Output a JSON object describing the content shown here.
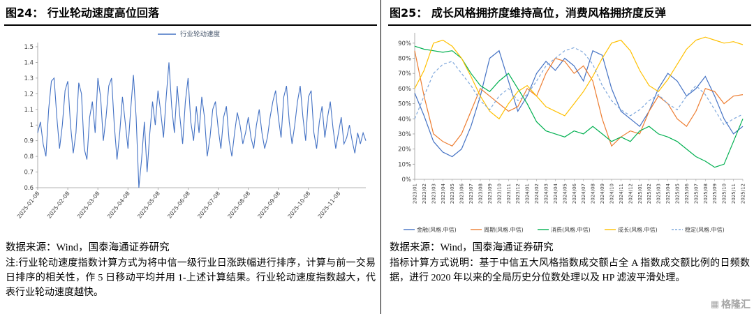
{
  "left": {
    "title": "图24：  行业轮动速度高位回落",
    "source": "数据来源：Wind，国泰海通证券研究",
    "note": "注:行业轮动速度指数计算方式为将中信一级行业日涨跌幅进行排序，计算与前一交易日排序的相关性，作 5 日移动平均并用 1-上述计算结果。行业轮动速度指数越大，代表行业轮动速度越快。"
  },
  "right": {
    "title": "图25：  成长风格拥挤度维持高位，消费风格拥挤度反弹",
    "source": "数据来源：Wind，国泰海通证券研究",
    "note": "指标计算方式说明：基于中信五大风格指数成交额占全 A 指数成交额比例的日频数据，进行 2020 年以来的全局历史分位数处理以及 HP 滤波平滑处理。"
  },
  "watermark": "格隆汇",
  "chart_data": [
    {
      "type": "line",
      "title": "图24: 行业轮动速度高位回落",
      "legend": [
        "行业轮动速度"
      ],
      "color": "#4472C4",
      "ylim": [
        0.6,
        1.5
      ],
      "yticks": [
        0.6,
        0.7,
        0.8,
        0.9,
        1,
        1.1,
        1.2,
        1.3,
        1.4,
        1.5
      ],
      "ytick_labels": [
        "0.6",
        "0.7",
        "0.8",
        "0.9",
        "1",
        "1.1",
        "1.2",
        "1.3",
        "1.4",
        "1.5"
      ],
      "xtick_labels": [
        "2025-01-08",
        "2025-02-08",
        "2025-03-08",
        "2025-04-08",
        "2025-05-08",
        "2025-06-08",
        "2025-07-08",
        "2025-08-08",
        "2025-09-08",
        "2025-10-08",
        "2025-11-08"
      ],
      "xtick_step": 11,
      "values": [
        0.95,
        1.02,
        0.88,
        0.8,
        1.1,
        1.28,
        1.3,
        1.05,
        0.85,
        1.0,
        1.22,
        1.28,
        1.0,
        0.82,
        0.95,
        1.27,
        1.2,
        0.85,
        0.78,
        1.05,
        1.15,
        0.95,
        1.3,
        1.18,
        0.9,
        1.05,
        1.25,
        1.3,
        1.0,
        0.78,
        0.95,
        1.18,
        1.02,
        0.85,
        1.1,
        1.32,
        1.05,
        0.6,
        0.78,
        1.02,
        0.7,
        0.95,
        1.15,
        1.0,
        1.22,
        1.08,
        0.92,
        1.18,
        1.4,
        1.12,
        0.95,
        1.25,
        1.05,
        0.88,
        1.15,
        1.3,
        1.02,
        0.9,
        1.12,
        0.95,
        1.18,
        1.05,
        0.8,
        0.92,
        1.1,
        1.15,
        0.98,
        0.85,
        1.05,
        1.12,
        0.9,
        0.8,
        0.95,
        1.08,
        1.0,
        0.88,
        0.95,
        1.05,
        0.92,
        0.85,
        1.0,
        1.1,
        0.95,
        0.85,
        0.92,
        1.05,
        1.15,
        1.22,
        1.05,
        0.92,
        1.18,
        1.25,
        1.02,
        0.88,
        1.0,
        1.15,
        1.25,
        1.05,
        0.9,
        1.18,
        1.22,
        0.95,
        0.85,
        1.02,
        1.12,
        0.92,
        1.05,
        1.15,
        0.98,
        0.85,
        0.95,
        1.05,
        0.88,
        0.92,
        1.0,
        0.9,
        0.82,
        0.95,
        0.88,
        0.95,
        0.9
      ]
    },
    {
      "type": "line",
      "title": "图25: 成长风格拥挤度维持高位，消费风格拥挤度反弹",
      "ylim": [
        0,
        95
      ],
      "yticks": [
        0,
        10,
        20,
        30,
        40,
        50,
        60,
        70,
        80,
        90
      ],
      "ytick_labels": [
        "0%",
        "10%",
        "20%",
        "30%",
        "40%",
        "50%",
        "60%",
        "70%",
        "80%",
        "90%"
      ],
      "categories": [
        "2023/01",
        "2023/02",
        "2023/03",
        "2023/04",
        "2023/05",
        "2023/06",
        "2023/07",
        "2023/08",
        "2023/09",
        "2023/10",
        "2023/11",
        "2023/12",
        "2024/01",
        "2024/02",
        "2024/03",
        "2024/04",
        "2024/05",
        "2024/06",
        "2024/07",
        "2024/08",
        "2024/09",
        "2024/10",
        "2024/11",
        "2024/12",
        "2025/01",
        "2025/02",
        "2025/03",
        "2025/04",
        "2025/05",
        "2025/06",
        "2025/07",
        "2025/08",
        "2025/09",
        "2025/10",
        "2025/11",
        "2025/12"
      ],
      "series": [
        {
          "name": "金融(风格.中信)",
          "color": "#4472C4",
          "dash": "",
          "values": [
            57,
            42,
            25,
            18,
            15,
            20,
            35,
            55,
            80,
            85,
            65,
            45,
            55,
            70,
            78,
            72,
            80,
            75,
            65,
            85,
            82,
            60,
            45,
            40,
            35,
            45,
            60,
            70,
            65,
            55,
            60,
            68,
            55,
            40,
            30,
            35
          ]
        },
        {
          "name": "周期(风格.中信)",
          "color": "#ED7D31",
          "dash": "",
          "values": [
            85,
            55,
            30,
            25,
            22,
            30,
            45,
            60,
            55,
            50,
            45,
            48,
            60,
            55,
            70,
            80,
            78,
            70,
            75,
            65,
            40,
            22,
            28,
            32,
            30,
            45,
            55,
            50,
            40,
            35,
            45,
            60,
            58,
            50,
            55,
            56
          ]
        },
        {
          "name": "消费(风格.中信)",
          "color": "#00B050",
          "dash": "",
          "values": [
            88,
            86,
            85,
            84,
            85,
            80,
            70,
            62,
            58,
            65,
            70,
            60,
            50,
            38,
            32,
            30,
            28,
            32,
            30,
            35,
            30,
            25,
            28,
            25,
            32,
            35,
            30,
            28,
            25,
            20,
            15,
            12,
            8,
            10,
            25,
            40
          ]
        },
        {
          "name": "成长(风格.中信)",
          "color": "#FFC000",
          "dash": "",
          "values": [
            60,
            72,
            90,
            92,
            88,
            80,
            68,
            55,
            45,
            40,
            50,
            58,
            62,
            55,
            48,
            45,
            42,
            50,
            58,
            68,
            80,
            90,
            92,
            85,
            72,
            62,
            58,
            66,
            76,
            86,
            92,
            94,
            92,
            90,
            91,
            89
          ]
        },
        {
          "name": "稳定(风格.中信)",
          "color": "#7FA8DC",
          "dash": "4,3",
          "values": [
            40,
            55,
            70,
            76,
            78,
            70,
            62,
            52,
            46,
            55,
            60,
            52,
            56,
            65,
            75,
            80,
            85,
            87,
            84,
            76,
            62,
            52,
            46,
            42,
            46,
            52,
            56,
            50,
            46,
            55,
            62,
            56,
            46,
            36,
            40,
            43
          ]
        }
      ]
    }
  ]
}
